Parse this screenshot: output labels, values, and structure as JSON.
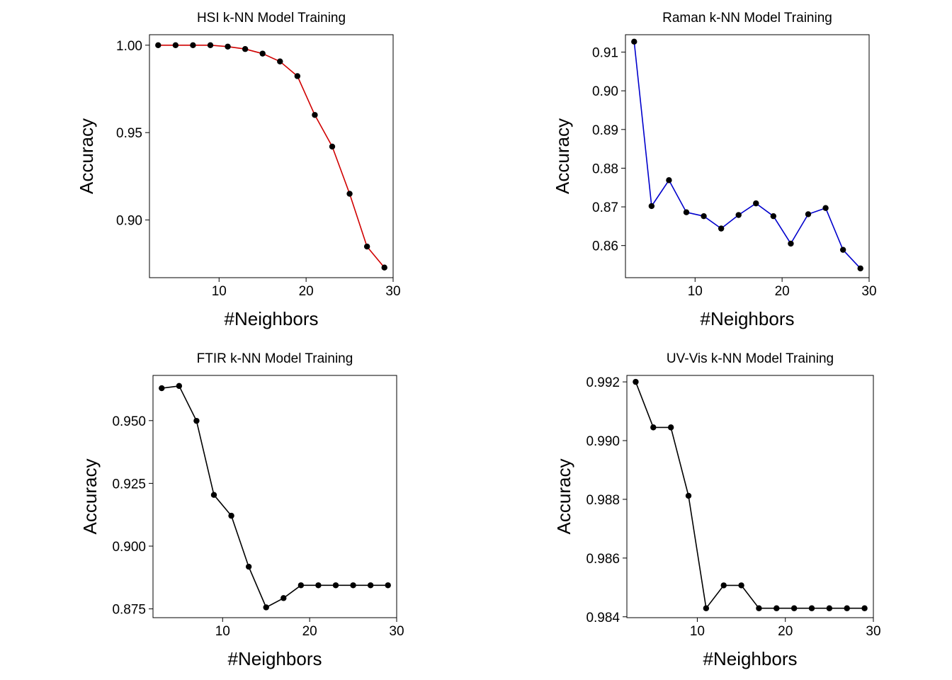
{
  "chart_data": [
    {
      "type": "line",
      "title": "HSI k-NN Model Training",
      "xlabel": "#Neighbors",
      "ylabel": "Accuracy",
      "line_color": "#d00000",
      "point_color": "#000000",
      "xlim": [
        2,
        30
      ],
      "ylim": [
        0.867,
        1.006
      ],
      "xticks": [
        10,
        20,
        30
      ],
      "xtick_labels": [
        "10",
        "20",
        "30"
      ],
      "yticks": [
        0.9,
        0.95,
        1.0
      ],
      "ytick_labels": [
        "0.90",
        "0.95",
        "1.00"
      ],
      "grid": false,
      "x": [
        3,
        5,
        7,
        9,
        11,
        13,
        15,
        17,
        19,
        21,
        23,
        25,
        27,
        29
      ],
      "y": [
        1.0,
        1.0,
        1.0,
        1.0,
        0.9992,
        0.9978,
        0.9952,
        0.9907,
        0.9823,
        0.9601,
        0.942,
        0.915,
        0.8848,
        0.8728
      ]
    },
    {
      "type": "line",
      "title": "Raman k-NN Model Training",
      "xlabel": "#Neighbors",
      "ylabel": "Accuracy",
      "line_color": "#0000cc",
      "point_color": "#000000",
      "xlim": [
        2,
        30
      ],
      "ylim": [
        0.8517,
        0.9145
      ],
      "xticks": [
        10,
        20,
        30
      ],
      "xtick_labels": [
        "10",
        "20",
        "30"
      ],
      "yticks": [
        0.86,
        0.87,
        0.88,
        0.89,
        0.9,
        0.91
      ],
      "ytick_labels": [
        "0.86",
        "0.87",
        "0.88",
        "0.89",
        "0.90",
        "0.91"
      ],
      "grid": false,
      "x": [
        3,
        5,
        7,
        9,
        11,
        13,
        15,
        17,
        19,
        21,
        23,
        25,
        27,
        29
      ],
      "y": [
        0.9127,
        0.8702,
        0.8769,
        0.8686,
        0.8676,
        0.8644,
        0.8679,
        0.8709,
        0.8676,
        0.8605,
        0.8681,
        0.8697,
        0.8589,
        0.8541
      ]
    },
    {
      "type": "line",
      "title": "FTIR k-NN Model Training",
      "xlabel": "#Neighbors",
      "ylabel": "Accuracy",
      "line_color": "#000000",
      "point_color": "#000000",
      "xlim": [
        2,
        30
      ],
      "ylim": [
        0.8715,
        0.968
      ],
      "xticks": [
        10,
        20,
        30
      ],
      "xtick_labels": [
        "10",
        "20",
        "30"
      ],
      "yticks": [
        0.875,
        0.9,
        0.925,
        0.95
      ],
      "ytick_labels": [
        "0.875",
        "0.900",
        "0.925",
        "0.950"
      ],
      "grid": false,
      "x": [
        3,
        5,
        7,
        9,
        11,
        13,
        15,
        17,
        19,
        21,
        23,
        25,
        27,
        29
      ],
      "y": [
        0.9629,
        0.9638,
        0.9499,
        0.9204,
        0.9121,
        0.8918,
        0.8756,
        0.8793,
        0.8844,
        0.8844,
        0.8844,
        0.8844,
        0.8844,
        0.8844
      ]
    },
    {
      "type": "line",
      "title": "UV-Vis k-NN Model Training",
      "xlabel": "#Neighbors",
      "ylabel": "Accuracy",
      "line_color": "#000000",
      "point_color": "#000000",
      "xlim": [
        2,
        30
      ],
      "ylim": [
        0.98397,
        0.99222
      ],
      "xticks": [
        10,
        20,
        30
      ],
      "xtick_labels": [
        "10",
        "20",
        "30"
      ],
      "yticks": [
        0.984,
        0.986,
        0.988,
        0.99,
        0.992
      ],
      "ytick_labels": [
        "0.984",
        "0.986",
        "0.988",
        "0.990",
        "0.992"
      ],
      "grid": false,
      "x": [
        3,
        5,
        7,
        9,
        11,
        13,
        15,
        17,
        19,
        21,
        23,
        25,
        27,
        29
      ],
      "y": [
        0.992,
        0.99045,
        0.99045,
        0.98812,
        0.98429,
        0.98507,
        0.98507,
        0.98429,
        0.98429,
        0.98429,
        0.98429,
        0.98429,
        0.98429,
        0.98429
      ]
    }
  ]
}
